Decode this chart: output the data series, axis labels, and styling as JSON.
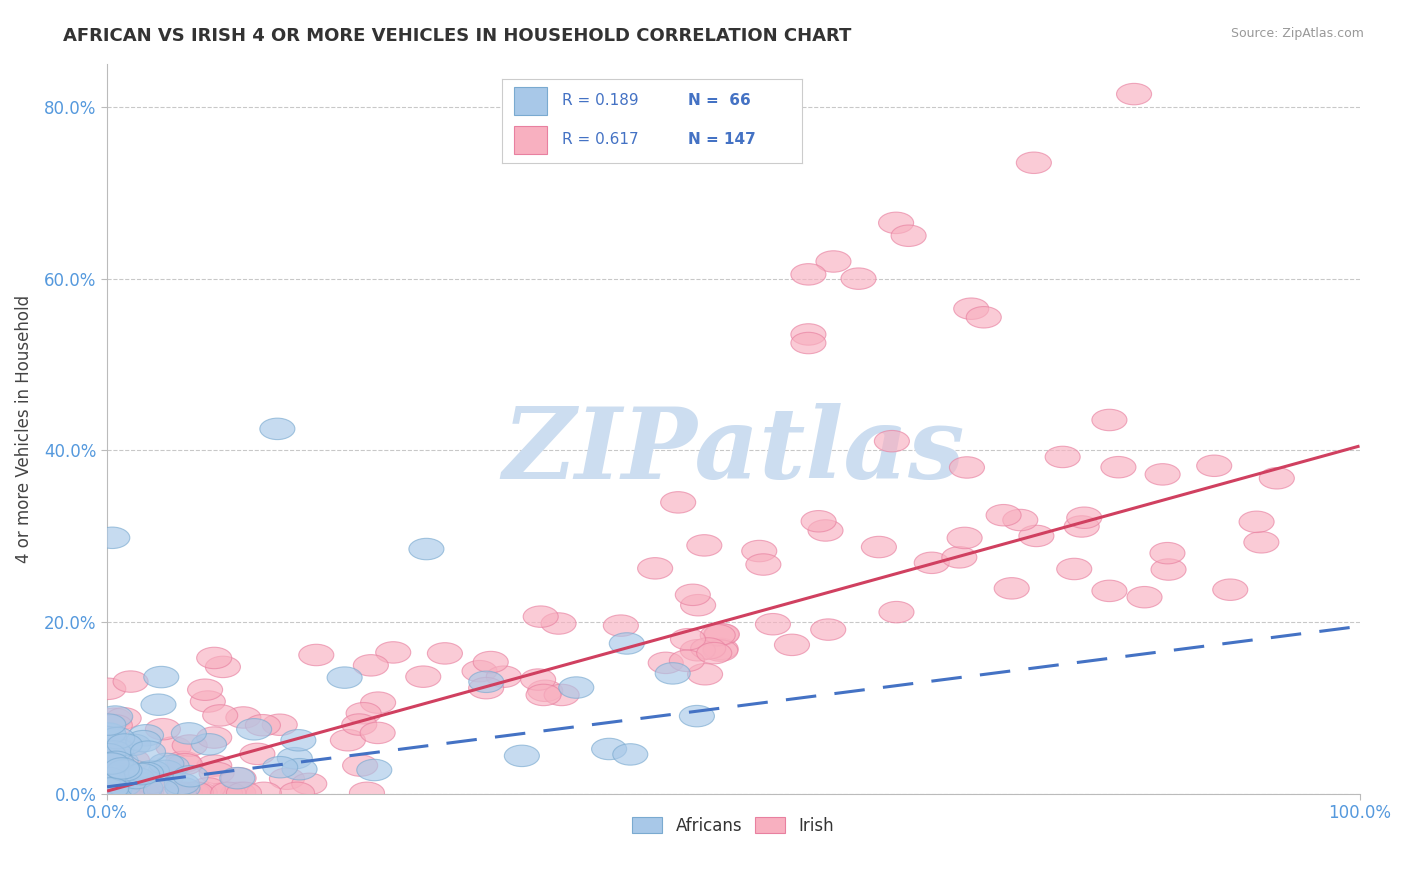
{
  "title": "AFRICAN VS IRISH 4 OR MORE VEHICLES IN HOUSEHOLD CORRELATION CHART",
  "source_text": "Source: ZipAtlas.com",
  "ylabel": "4 or more Vehicles in Household",
  "xlim": [
    0,
    1.0
  ],
  "ylim": [
    0,
    0.85
  ],
  "ytick_vals": [
    0.0,
    0.2,
    0.4,
    0.6,
    0.8
  ],
  "ytick_labels": [
    "0.0%",
    "20.0%",
    "40.0%",
    "60.0%",
    "80.0%"
  ],
  "xtick_vals": [
    0.0,
    1.0
  ],
  "xtick_labels": [
    "0.0%",
    "100.0%"
  ],
  "african_color_face": "#a8c8e8",
  "african_color_edge": "#7aaad0",
  "irish_color_face": "#f8b0c0",
  "irish_color_edge": "#e880a0",
  "african_line_color": "#4472c4",
  "irish_line_color": "#d04060",
  "tick_color": "#5599dd",
  "grid_color": "#bbbbbb",
  "watermark_text": "ZIPatlas",
  "watermark_color": "#ccddf0",
  "legend_text": [
    [
      "R = 0.189",
      "N =  66"
    ],
    [
      "R = 0.617",
      "N = 147"
    ]
  ],
  "irish_line_x0": 0.0,
  "irish_line_y0": 0.003,
  "irish_line_x1": 1.0,
  "irish_line_y1": 0.405,
  "african_line_x0": 0.0,
  "african_line_y0": 0.008,
  "african_line_x1": 1.0,
  "african_line_y1": 0.195
}
